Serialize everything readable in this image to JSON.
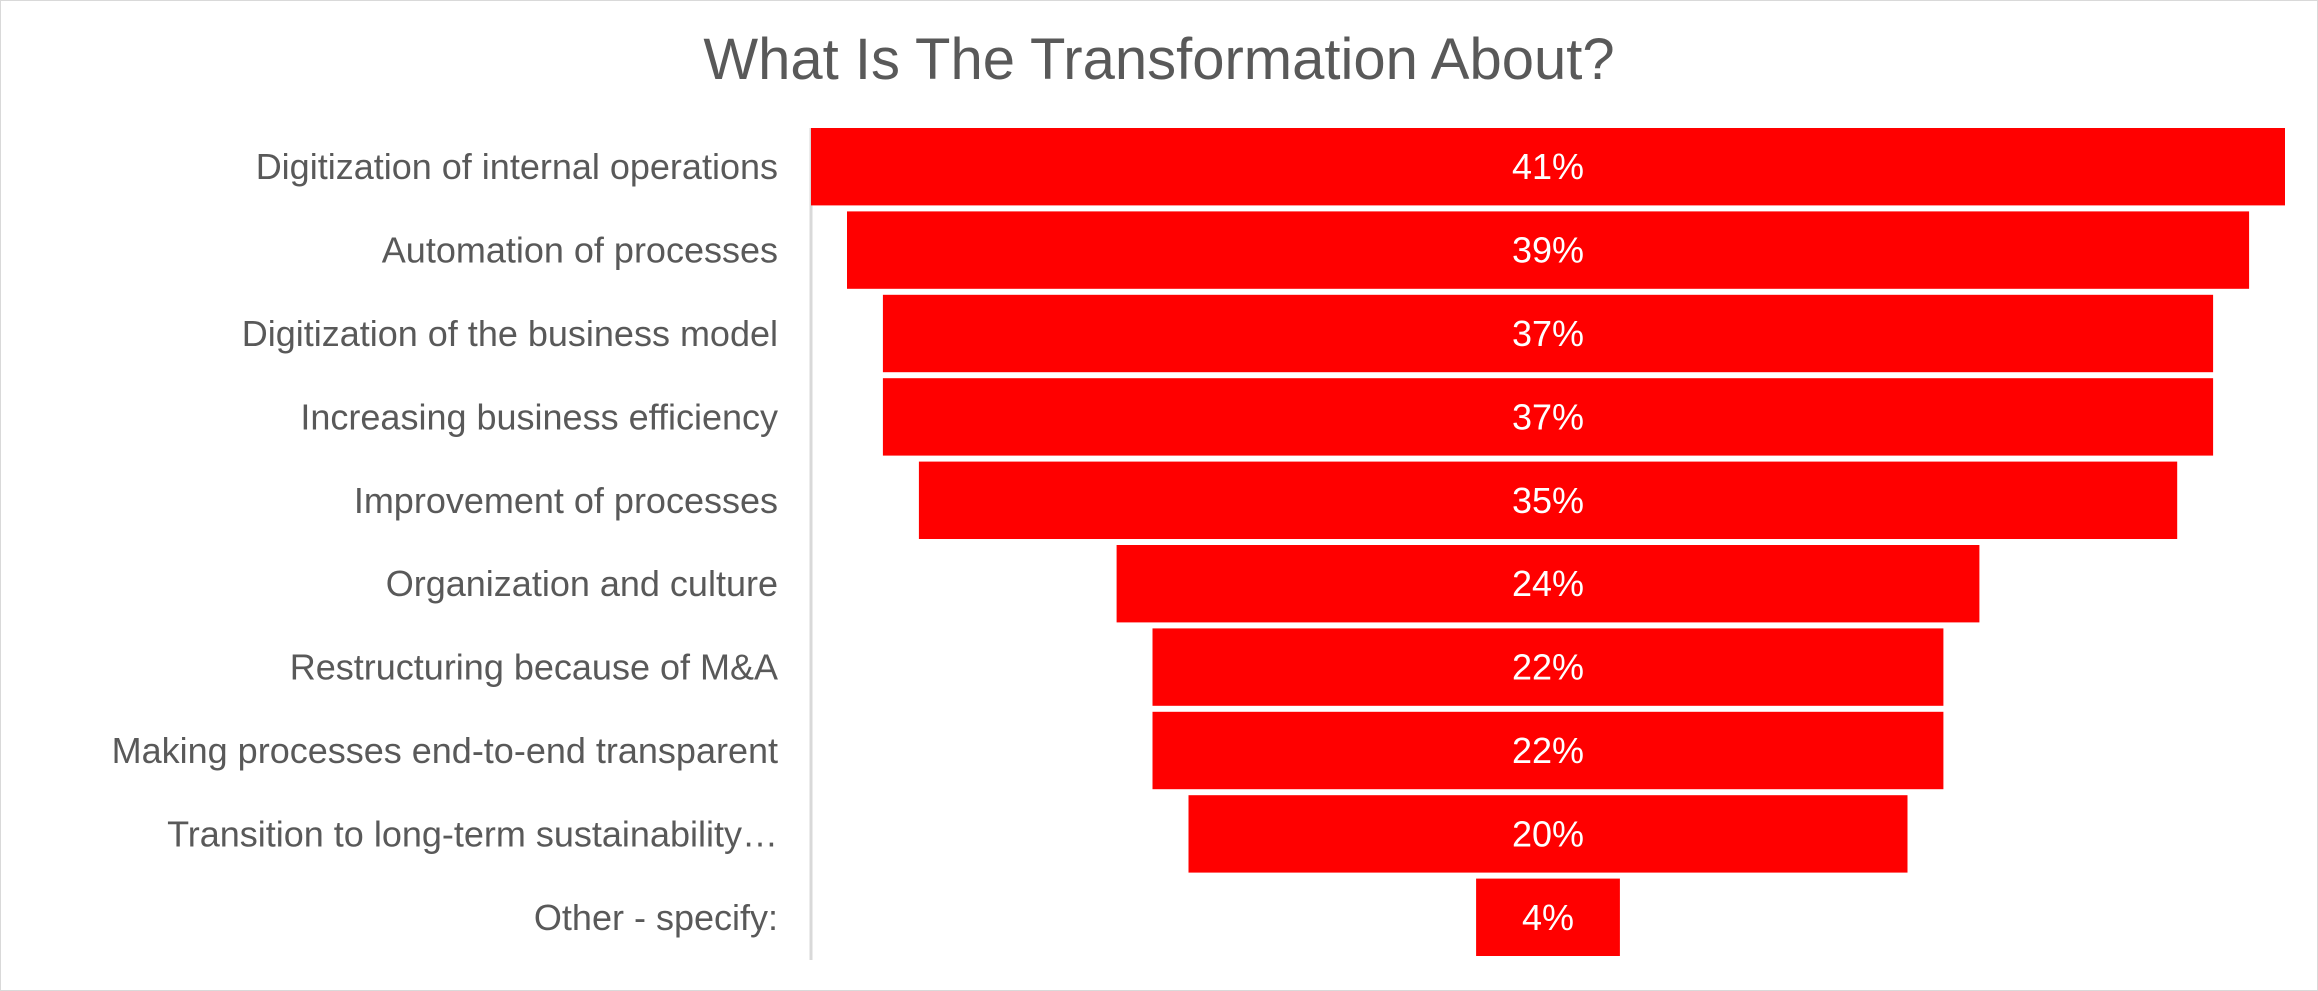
{
  "chart_data": {
    "type": "bar",
    "subtype": "funnel",
    "title": "What Is The Transformation About?",
    "categories": [
      "Digitization of internal operations",
      "Automation of processes",
      "Digitization of the business model",
      "Increasing business efficiency",
      "Improvement of processes",
      "Organization and culture",
      "Restructuring because of M&A",
      "Making processes end-to-end transparent",
      "Transition to long-term sustainability…",
      "Other - specify:"
    ],
    "values": [
      41,
      39,
      37,
      37,
      35,
      24,
      22,
      22,
      20,
      4
    ],
    "value_labels": [
      "41%",
      "39%",
      "37%",
      "37%",
      "35%",
      "24%",
      "22%",
      "22%",
      "20%",
      "4%"
    ],
    "unit": "%",
    "xlim": [
      0,
      41
    ],
    "grid": false,
    "legend": "none",
    "colors": {
      "bar": "#ff0000",
      "axis": "#d9d9d9",
      "text": "#595959",
      "value_text": "#ffffff"
    }
  }
}
